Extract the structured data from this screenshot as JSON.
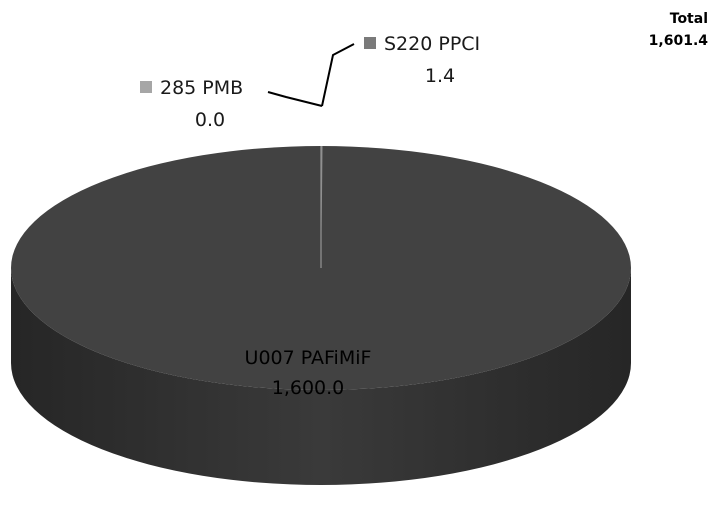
{
  "total": {
    "label": "Total",
    "value": "1,601.4"
  },
  "colors": {
    "u007_top": "#424242",
    "u007_side": "#333333",
    "s220": "#7a7a7a",
    "pmb285": "#a6a6a6",
    "leader": "#000000"
  },
  "chart_data": {
    "type": "pie",
    "style": "3d",
    "title": "",
    "legend": "none",
    "slices": [
      {
        "name": "U007 PAFiMiF",
        "value": 1600.0,
        "value_label": "1,600.0"
      },
      {
        "name": "S220 PPCI",
        "value": 1.4,
        "value_label": "1.4"
      },
      {
        "name": "285 PMB",
        "value": 0.0,
        "value_label": "0.0"
      }
    ]
  }
}
